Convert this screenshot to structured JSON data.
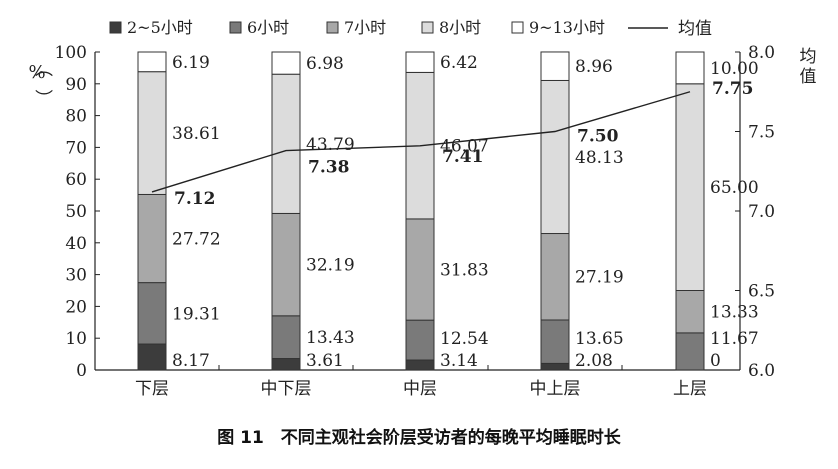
{
  "caption": "图 11　不同主观社会阶层受访者的每晚平均睡眠时长",
  "chart_data": {
    "type": "bar",
    "stacked": true,
    "categories": [
      "下层",
      "中下层",
      "中层",
      "中上层",
      "上层"
    ],
    "series": [
      {
        "name": "2~5小时",
        "values": [
          8.17,
          3.61,
          3.14,
          2.08,
          0
        ],
        "color": "#3c3c3c"
      },
      {
        "name": "6小时",
        "values": [
          19.31,
          13.43,
          12.54,
          13.65,
          11.67
        ],
        "color": "#7a7a7a"
      },
      {
        "name": "7小时",
        "values": [
          27.72,
          32.19,
          31.83,
          27.19,
          13.33
        ],
        "color": "#a8a8a8"
      },
      {
        "name": "8小时",
        "values": [
          38.61,
          43.79,
          46.07,
          48.13,
          65.0
        ],
        "color": "#dcdcdc"
      },
      {
        "name": "9~13小时",
        "values": [
          6.19,
          6.98,
          6.42,
          8.96,
          10.0
        ],
        "color": "#ffffff"
      }
    ],
    "value_labels": [
      [
        "8.17",
        "3.61",
        "3.14",
        "2.08",
        "0"
      ],
      [
        "19.31",
        "13.43",
        "12.54",
        "13.65",
        "11.67"
      ],
      [
        "27.72",
        "32.19",
        "31.83",
        "27.19",
        "13.33"
      ],
      [
        "38.61",
        "43.79",
        "46.07",
        "48.13",
        "65.00"
      ],
      [
        "6.19",
        "6.98",
        "6.42",
        "8.96",
        "10.00"
      ]
    ],
    "line": {
      "name": "均值",
      "values": [
        7.12,
        7.38,
        7.41,
        7.5,
        7.75
      ],
      "labels": [
        "7.12",
        "7.38",
        "7.41",
        "7.50",
        "7.75"
      ]
    },
    "y_left": {
      "label": "（%）",
      "lim": [
        0,
        100
      ],
      "ticks": [
        "0",
        "10",
        "20",
        "30",
        "40",
        "50",
        "60",
        "70",
        "80",
        "90",
        "100"
      ]
    },
    "y_right": {
      "label": "均值",
      "lim": [
        6.0,
        8.0
      ],
      "ticks": [
        "6.0",
        "6.5",
        "7.0",
        "7.5",
        "8.0"
      ]
    },
    "legend_position": "top",
    "grid": false
  }
}
